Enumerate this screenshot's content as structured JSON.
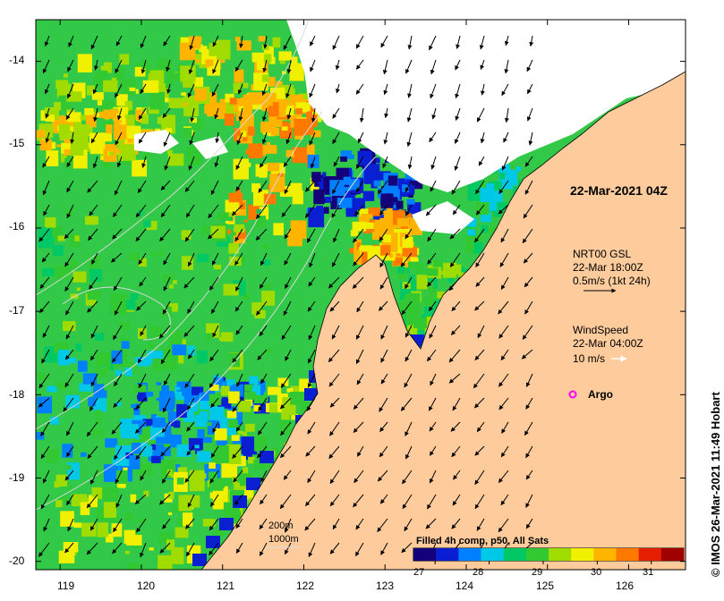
{
  "map": {
    "timestamp": "22-Mar-2021 04Z",
    "lat_ticks": [
      "-14",
      "-15",
      "-16",
      "-17",
      "-18",
      "-19",
      "-20"
    ],
    "lon_ticks": [
      "119",
      "120",
      "121",
      "122",
      "123",
      "124",
      "125",
      "126"
    ],
    "lon_range": [
      118.7,
      126.7
    ],
    "lat_range": [
      -20.1,
      -13.5
    ],
    "land_color": "#fdcb9c",
    "cloud_color": "#ffffff"
  },
  "current_legend": {
    "model": "NRT00 GSL",
    "time": "22-Mar 18:00Z",
    "scale": "0.5m/s (1kt 24h)"
  },
  "wind_legend": {
    "label": "WindSpeed",
    "time": "22-Mar 04:00Z",
    "scale": "10 m/s"
  },
  "argo": {
    "label": "Argo",
    "lon": 125.3,
    "lat": -18.0,
    "color": "#ff00ff"
  },
  "contours": {
    "label_200": "200m",
    "label_1000": "1000m"
  },
  "colorbar": {
    "title": "Filled 4h comp, p50, All Sats",
    "ticks": [
      "27",
      "28",
      "29",
      "30",
      "31"
    ],
    "range": [
      26.6,
      31.6
    ],
    "colors": [
      "#14007a",
      "#0a1ed2",
      "#007fff",
      "#00c8e6",
      "#00c864",
      "#32c832",
      "#a0dc00",
      "#f0f000",
      "#ffb400",
      "#ff7800",
      "#e61e00",
      "#a00000"
    ]
  },
  "credit": "© IMOS 26-Mar-2021 11:49 Hobart"
}
